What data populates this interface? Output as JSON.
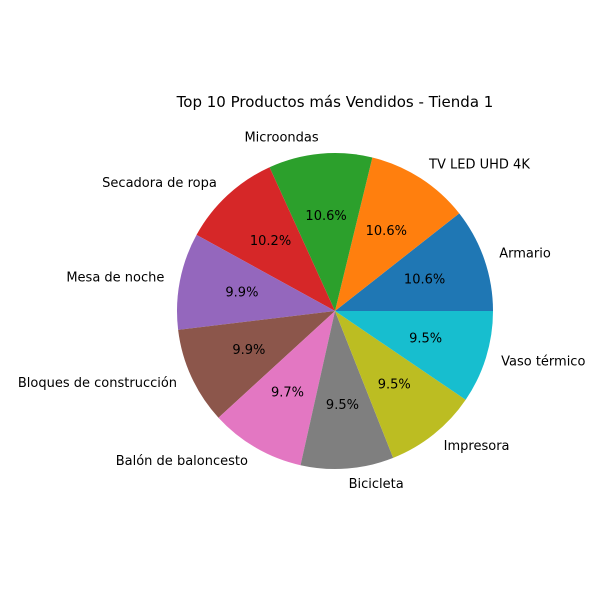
{
  "chart_data": {
    "type": "pie",
    "title": "Top 10 Productos más Vendidos - Tienda 1",
    "start_angle_deg": 0,
    "direction": "counterclockwise",
    "slices": [
      {
        "label": "Armario",
        "percent": 10.6,
        "pct_label": "10.6%",
        "color": "#1f77b4"
      },
      {
        "label": "TV LED UHD 4K",
        "percent": 10.6,
        "pct_label": "10.6%",
        "color": "#ff7f0e"
      },
      {
        "label": "Microondas",
        "percent": 10.6,
        "pct_label": "10.6%",
        "color": "#2ca02c"
      },
      {
        "label": "Secadora de ropa",
        "percent": 10.2,
        "pct_label": "10.2%",
        "color": "#d62728"
      },
      {
        "label": "Mesa de noche",
        "percent": 9.9,
        "pct_label": "9.9%",
        "color": "#9467bd"
      },
      {
        "label": "Bloques de construcción",
        "percent": 9.9,
        "pct_label": "9.9%",
        "color": "#8c564b"
      },
      {
        "label": "Balón de baloncesto",
        "percent": 9.7,
        "pct_label": "9.7%",
        "color": "#e377c2"
      },
      {
        "label": "Bicicleta",
        "percent": 9.5,
        "pct_label": "9.5%",
        "color": "#7f7f7f"
      },
      {
        "label": "Impresora",
        "percent": 9.5,
        "pct_label": "9.5%",
        "color": "#bcbd22"
      },
      {
        "label": "Vaso térmico",
        "percent": 9.5,
        "pct_label": "9.5%",
        "color": "#17becf"
      }
    ]
  }
}
